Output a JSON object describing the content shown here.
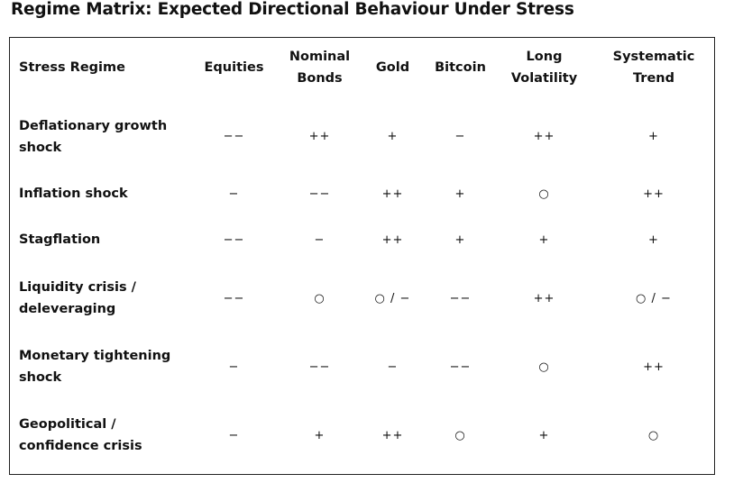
{
  "title": "Regime Matrix: Expected Directional Behaviour Under Stress",
  "table": {
    "headers": [
      "Stress Regime",
      "Equities",
      "Nominal Bonds",
      "Gold",
      "Bitcoin",
      "Long Volatility",
      "Systematic Trend"
    ],
    "rows": [
      {
        "regime": "Deflationary growth shock",
        "values": [
          "−−",
          "++",
          "+",
          "−",
          "++",
          "+"
        ]
      },
      {
        "regime": "Inflation shock",
        "values": [
          "−",
          "−−",
          "++",
          "+",
          "○",
          "++"
        ]
      },
      {
        "regime": "Stagflation",
        "values": [
          "−−",
          "−",
          "++",
          "+",
          "+",
          "+"
        ]
      },
      {
        "regime": "Liquidity crisis / deleveraging",
        "values": [
          "−−",
          "○",
          "○ / −",
          "−−",
          "++",
          "○ / −"
        ]
      },
      {
        "regime": "Monetary tightening shock",
        "values": [
          "−",
          "−−",
          "−",
          "−−",
          "○",
          "++"
        ]
      },
      {
        "regime": "Geopolitical / confidence crisis",
        "values": [
          "−",
          "+",
          "++",
          "○",
          "+",
          "○"
        ]
      }
    ]
  }
}
